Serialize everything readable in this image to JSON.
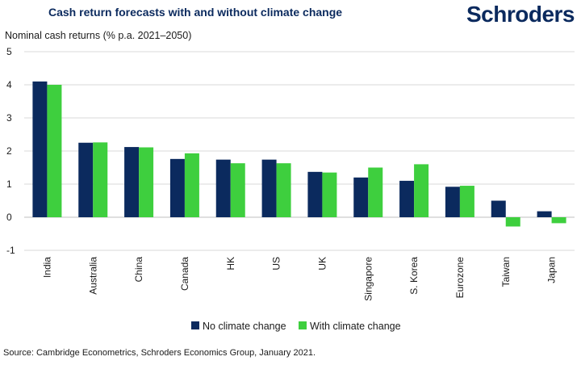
{
  "header": {
    "title": "Cash return forecasts with and without climate change",
    "brand": "Schroders"
  },
  "source": "Source: Cambridge Econometrics, Schroders Economics Group, January 2021.",
  "colors": {
    "no_climate": "#0b2a5e",
    "with_climate": "#3ecf3e",
    "grid": "#d9d9d9",
    "axis": "#bfbfbf"
  },
  "chart_data": {
    "type": "bar",
    "title": "Cash return forecasts with and without climate change",
    "ylabel": "Nominal cash returns (% p.a. 2021–2050)",
    "xlabel": "",
    "ylim": [
      -1,
      5
    ],
    "yticks": [
      "5",
      "4",
      "3",
      "2",
      "1",
      "0",
      "-1"
    ],
    "ytick_values": [
      5,
      4,
      3,
      2,
      1,
      0,
      -1
    ],
    "grid": true,
    "legend_position": "bottom-center",
    "categories": [
      "India",
      "Australia",
      "China",
      "Canada",
      "HK",
      "US",
      "UK",
      "Singapore",
      "S. Korea",
      "Eurozone",
      "Taiwan",
      "Japan"
    ],
    "series": [
      {
        "name": "No climate change",
        "values": [
          4.1,
          2.25,
          2.12,
          1.76,
          1.74,
          1.74,
          1.37,
          1.2,
          1.1,
          0.92,
          0.5,
          0.18
        ]
      },
      {
        "name": "With climate change",
        "values": [
          4.0,
          2.26,
          2.11,
          1.93,
          1.63,
          1.63,
          1.35,
          1.5,
          1.6,
          0.95,
          -0.28,
          -0.18
        ]
      }
    ]
  }
}
